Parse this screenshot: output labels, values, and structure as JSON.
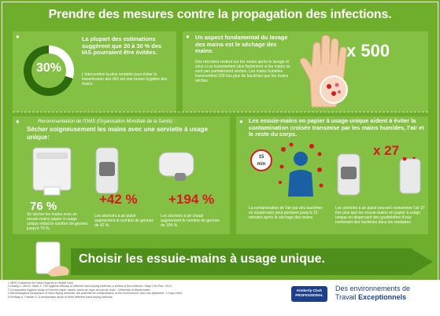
{
  "title": "Prendre des mesures contre la propagation des infections.",
  "panel1": {
    "ring_value": "30%",
    "ring_fraction": 0.3,
    "heading": "La plupart des estimations suggèrent que 20 à 30 % des IAS pourraient être évitées.",
    "body": "L'intervention la plus rentable pour éviter la transmission des IAS est une bonne hygiène des mains."
  },
  "panel2": {
    "heading": "Un aspect fondamental du lavage des mains est le séchage des mains.",
    "body": "Des microbes restent sur les mains après le lavage et ceux-ci se transmettent plus facilement si les mains ne sont pas parfaitement sèches. Les mains humides transmettent 500 fois plus de bactéries que les mains sèches.",
    "multiplier": "x 500"
  },
  "panel3": {
    "subtitle": "Recommandation de l'OMS (Organisation Mondiale de la Santé) :",
    "heading": "Sécher soigneusement les mains avec une serviette à usage unique:",
    "items": [
      {
        "value": "76 %",
        "text": "Se sécher les mains avec un essuie-mains papier à usage unique réduit le nombre de germes jusqu'à 76 %."
      },
      {
        "value": "+42 %",
        "text": "Les sèchoirs à air pulsé augmentent le nombre de germes de 42 %."
      },
      {
        "value": "+194 %",
        "text": "Les sèchoirs à air chaud augmentent le nombre de germes de 194 %."
      }
    ]
  },
  "panel4": {
    "heading": "Les essuie-mains en papier à usage unique aident à éviter la contamination croisée transmise par les mains humides, l'air et le reste du corps.",
    "clock_value": "15",
    "clock_unit": "min",
    "multiplier": "x 27",
    "left_text": "La contamination de l'air par des bactéries en suspension peut perdurer jusqu'à 15 minutes après le séchage des mains.",
    "right_text": "Les sèchoirs à air pulsé peuvent contaminer l'air 27 fois plus que les essuie-mains en papier à usage unique en dispersant des gouttelettes d'eau contenant des bactéries dans les sanitaires."
  },
  "banner": "Choisir les essuie-mains à usage unique.",
  "footer": {
    "references": [
      "1 WHO Guidelines for Hand Hygiene in Health Care.",
      "2 Huang C, Ma W, Stack S. The hygienic efficacy of different hand-drying methods: a review of the evidence. Mayo Clin Proc. 2012.",
      "3 Comparative hygiene study of Kleenex paper towels, warm air dryer and jet air dryer - University of Westminster.",
      "4 Microbiological comparison of hand drying methods: the potential for contamination of the environment, user and bystander. J Hosp Infect.",
      "5 Redway K, Fawdar S. A comparative study of three different hand drying methods."
    ],
    "brand": "Kimberly-Clark",
    "brand_sub": "PROFESSIONAL",
    "tagline_line1": "Des environnements de",
    "tagline_plain": "Travail ",
    "tagline_bold": "Exceptionnels"
  },
  "colors": {
    "background": "#6eae2c",
    "panel": "#83c044",
    "accent_red": "#d71920",
    "dark_green": "#2d6a0c",
    "brand_blue": "#1d3f8a"
  }
}
